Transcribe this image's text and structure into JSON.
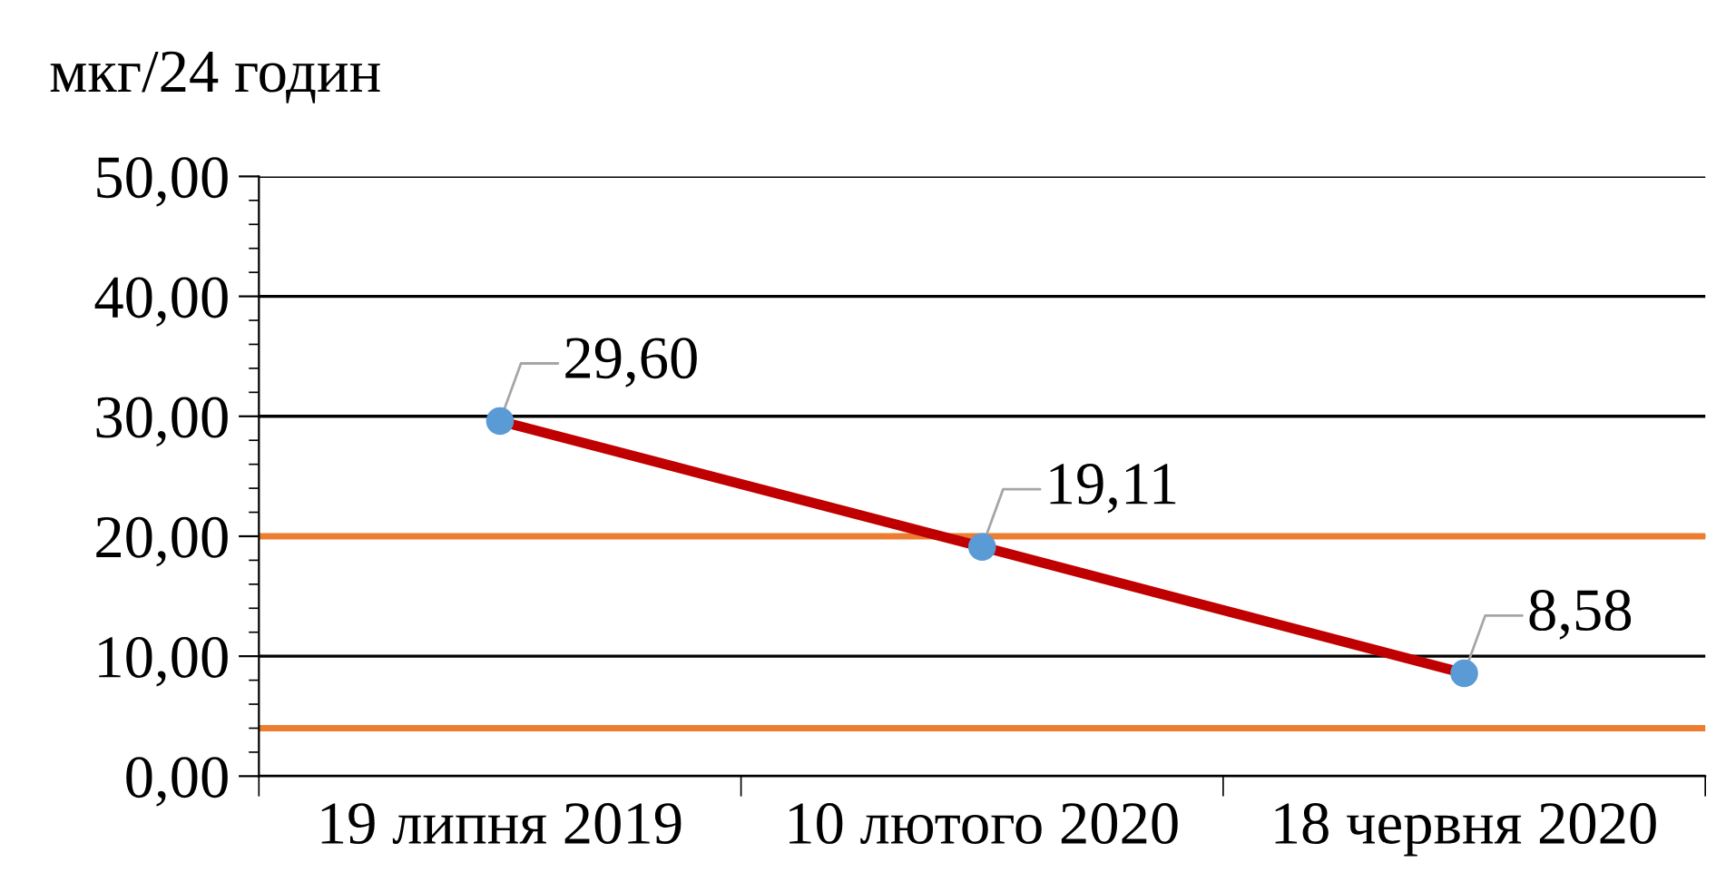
{
  "chart_data": {
    "type": "line",
    "ylabel": "мкг/24 годин",
    "categories": [
      "19 липня 2019",
      "10 лютого 2020",
      "18 червня 2020"
    ],
    "series": [
      {
        "color": "#c00000",
        "values": [
          29.6,
          19.11,
          8.58
        ],
        "value_labels": [
          "29,60",
          "19,11",
          "8,58"
        ]
      }
    ],
    "marker": "circle",
    "ylim": [
      0,
      50
    ],
    "yticks": [
      {
        "value": 0,
        "label": "0,00"
      },
      {
        "value": 10,
        "label": "10,00"
      },
      {
        "value": 20,
        "label": "20,00"
      },
      {
        "value": 30,
        "label": "30,00"
      },
      {
        "value": 40,
        "label": "40,00"
      },
      {
        "value": 50,
        "label": "50,00"
      }
    ],
    "grid": "y",
    "ref_lines": [
      {
        "axis": "y",
        "value": 20,
        "color": "#ed7d31"
      },
      {
        "axis": "y",
        "value": 4,
        "color": "#ed7d31"
      }
    ]
  }
}
